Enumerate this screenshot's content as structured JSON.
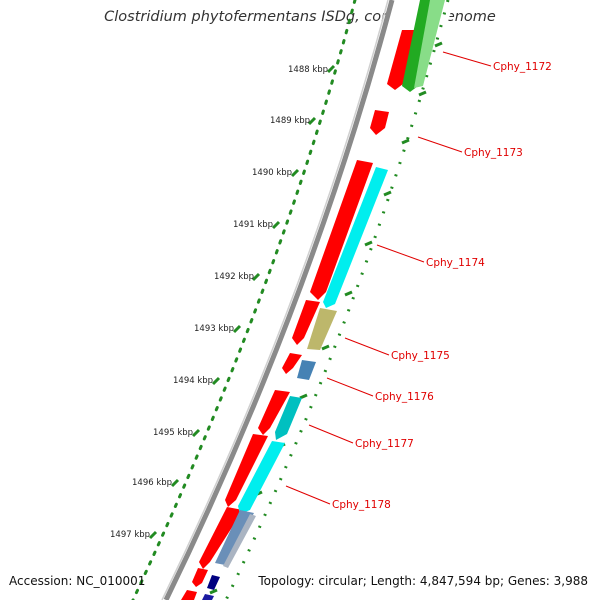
{
  "title": "Clostridium phytofermentans ISDg, complete genome",
  "footer": {
    "accession": "Accession: NC_010001",
    "summary": "Topology: circular; Length: 4,847,594 bp; Genes: 3,988"
  },
  "colors": {
    "cds": "#ff0000",
    "backbone": "#8a8a8a",
    "tick_dots": "#228b22",
    "gene_label": "#e00000",
    "cyan": "#00eeee",
    "khaki": "#bdb76b",
    "steel": "#4682b4",
    "green": "#22aa22",
    "navy": "#000080"
  },
  "kbp_labels": [
    "1488 kbp",
    "1489 kbp",
    "1490 kbp",
    "1491 kbp",
    "1492 kbp",
    "1493 kbp",
    "1494 kbp",
    "1495 kbp",
    "1496 kbp",
    "1497 kbp"
  ],
  "gene_labels": [
    "Cphy_1172",
    "Cphy_1173",
    "Cphy_1174",
    "Cphy_1175",
    "Cphy_1176",
    "Cphy_1177",
    "Cphy_1178"
  ]
}
